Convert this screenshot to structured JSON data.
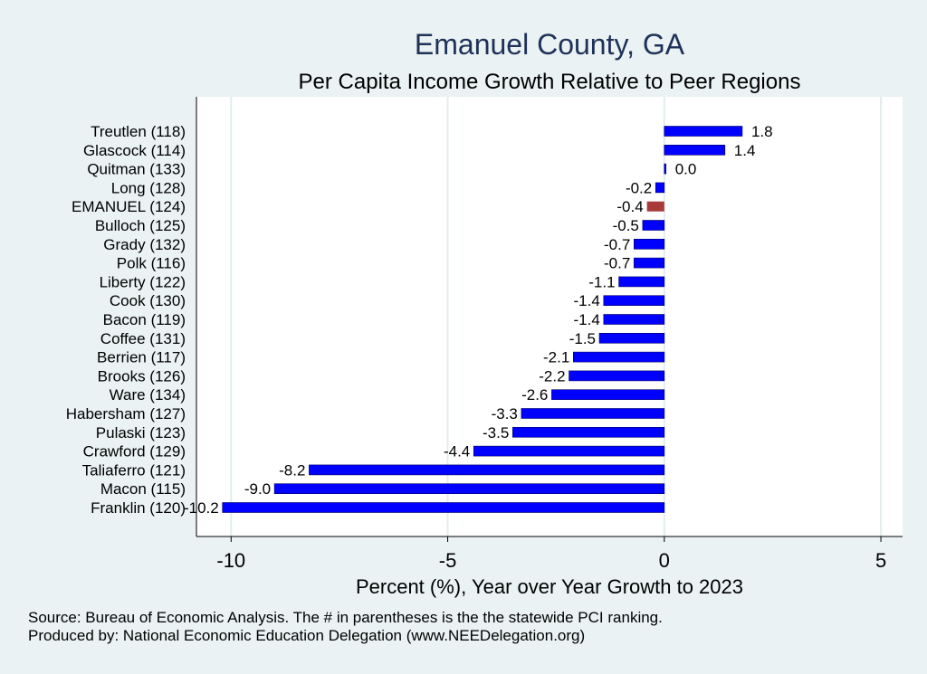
{
  "chart_data": {
    "type": "bar",
    "orientation": "horizontal",
    "title": "Emanuel County, GA",
    "subtitle": "Per Capita Income Growth Relative to Peer Regions",
    "xlabel": "Percent (%), Year over Year Growth to 2023",
    "ylabel": "",
    "xlim": [
      -10.8,
      5.5
    ],
    "xticks": [
      -10,
      -5,
      0,
      5
    ],
    "xtick_labels": [
      "-10",
      "-5",
      "0",
      "5"
    ],
    "grid": true,
    "categories": [
      "Treutlen (118)",
      "Glascock (114)",
      "Quitman (133)",
      "Long (128)",
      "EMANUEL (124)",
      "Bulloch (125)",
      "Grady (132)",
      "Polk (116)",
      "Liberty (122)",
      "Cook (130)",
      "Bacon (119)",
      "Coffee (131)",
      "Berrien (117)",
      "Brooks (126)",
      "Ware (134)",
      "Habersham (127)",
      "Pulaski (123)",
      "Crawford (129)",
      "Taliaferro (121)",
      "Macon (115)",
      "Franklin (120)"
    ],
    "values": [
      1.8,
      1.4,
      0.04,
      -0.2,
      -0.4,
      -0.5,
      -0.7,
      -0.7,
      -1.05,
      -1.4,
      -1.4,
      -1.5,
      -2.1,
      -2.2,
      -2.6,
      -3.3,
      -3.5,
      -4.4,
      -8.2,
      -9.0,
      -10.2
    ],
    "value_labels": [
      "1.8",
      "1.4",
      "0.0",
      "-0.2",
      "-0.4",
      "-0.5",
      "-0.7",
      "-0.7",
      "-1.1",
      "-1.4",
      "-1.4",
      "-1.5",
      "-2.1",
      "-2.2",
      "-2.6",
      "-3.3",
      "-3.5",
      "-4.4",
      "-8.2",
      "-9.0",
      "-10.2"
    ],
    "highlight": "EMANUEL (124)",
    "colors": {
      "bar": "#0000ff",
      "bar_outline": "#000066",
      "highlight": "#a83a3a",
      "plot_bg": "#ffffff",
      "page_bg": "#eaf2f3",
      "grid": "#e3ecee",
      "title": "#1f3158"
    }
  },
  "notes": {
    "source": "Source: Bureau of Economic Analysis. The # in parentheses is the the statewide PCI ranking.",
    "produced_by": "Produced by: National Economic Education Delegation (www.NEEDelegation.org)"
  }
}
